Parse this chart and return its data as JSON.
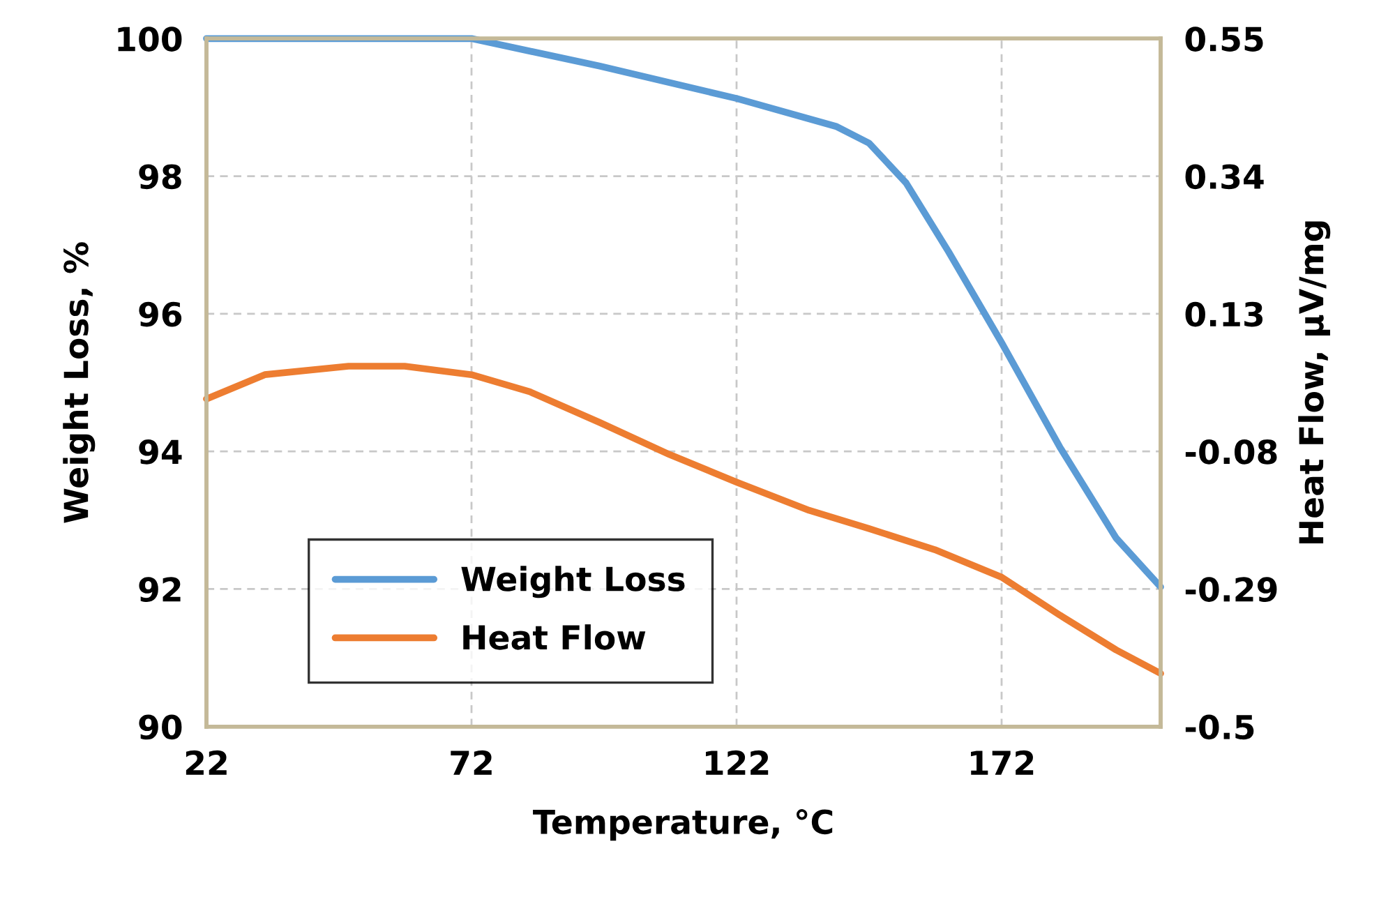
{
  "chart_data": {
    "type": "line",
    "xlabel": "Temperature, °C",
    "ylabel": "Weight Loss, %",
    "y2label": "Heat Flow, µV/mg",
    "xlim": [
      22,
      202
    ],
    "xticks": [
      22,
      72,
      122,
      172
    ],
    "ylim": [
      90,
      100
    ],
    "yticks": [
      90,
      92,
      94,
      96,
      98,
      100
    ],
    "y2lim": [
      -0.5,
      0.55
    ],
    "y2ticks": [
      -0.5,
      -0.29,
      -0.08,
      0.13,
      0.34,
      0.55
    ],
    "grid": true,
    "legend": "bottom left",
    "series": [
      {
        "name": "Weight Loss",
        "color": "#5b9bd5",
        "x": [
          22,
          72,
          96.2,
          122,
          140.9,
          147,
          154,
          162,
          172,
          183,
          193.6,
          202
        ],
        "values": [
          100,
          100,
          99.6,
          99.13,
          98.72,
          98.48,
          97.9,
          96.9,
          95.58,
          94.06,
          92.74,
          92.03
        ]
      },
      {
        "name": "Heat Flow",
        "color": "#ed7d31",
        "axis": "y2",
        "x": [
          22,
          33,
          48.8,
          59.4,
          72,
          83,
          96.2,
          109.4,
          122,
          135.7,
          147,
          159.4,
          172,
          183,
          193.6,
          202
        ],
        "values": [
          0.0,
          0.037,
          0.05,
          0.05,
          0.037,
          0.011,
          -0.036,
          -0.085,
          -0.127,
          -0.17,
          -0.198,
          -0.23,
          -0.272,
          -0.33,
          -0.383,
          -0.419
        ]
      }
    ]
  }
}
